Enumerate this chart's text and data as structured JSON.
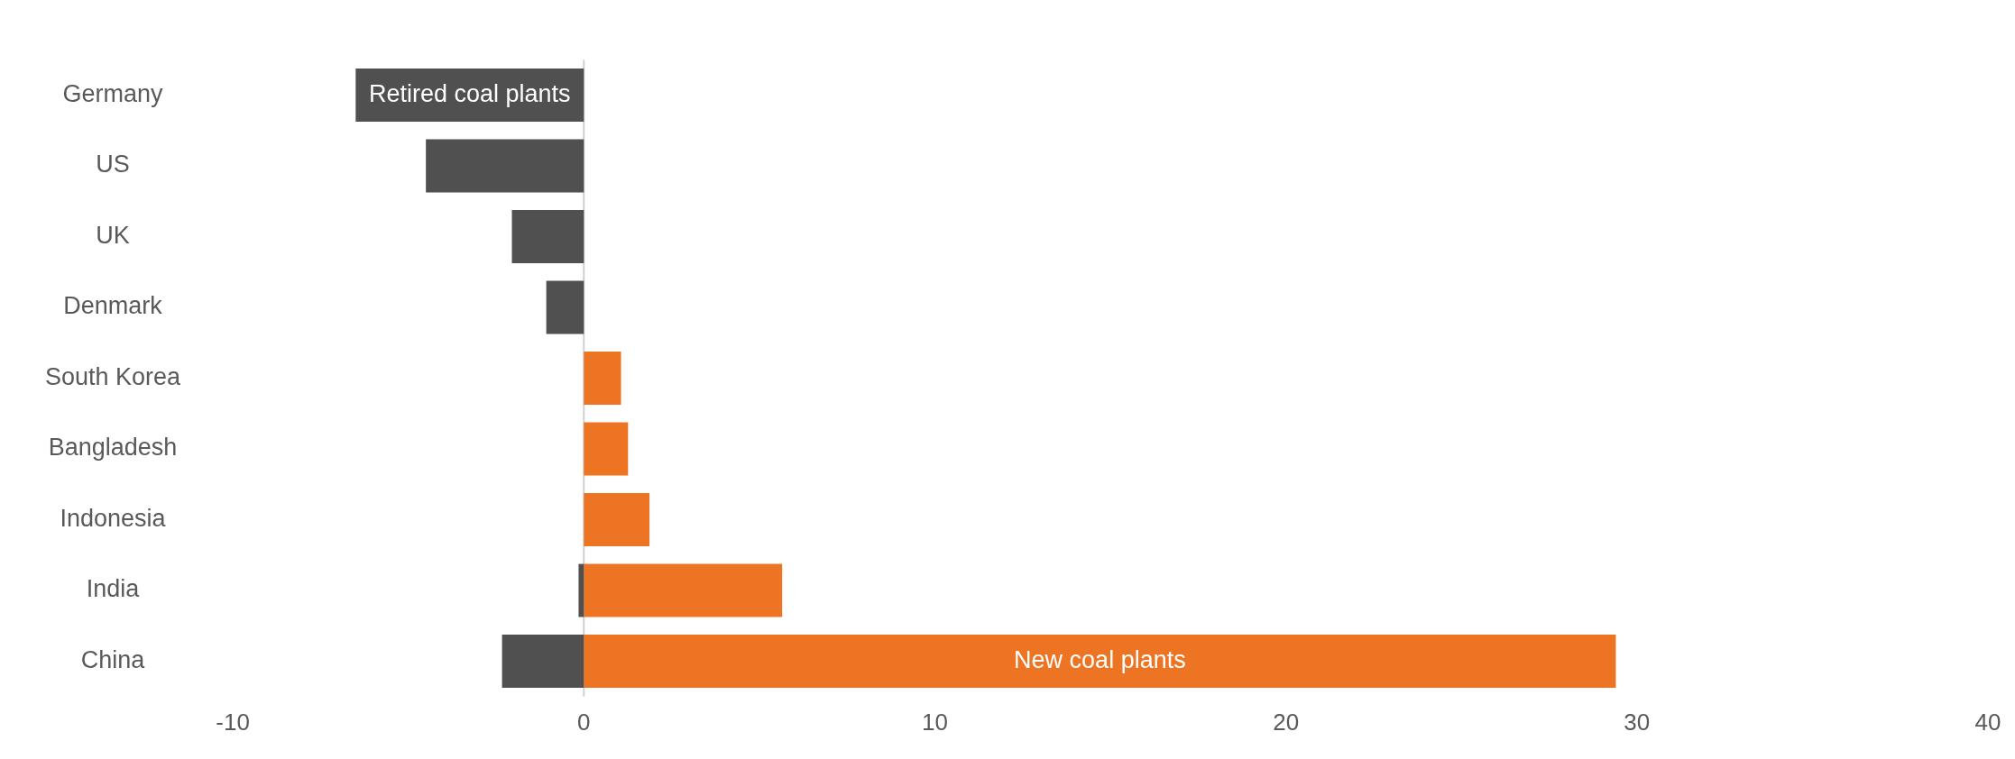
{
  "chart_data": {
    "type": "bar",
    "orientation": "horizontal",
    "stacked": true,
    "categories": [
      "Germany",
      "US",
      "UK",
      "Denmark",
      "South Korea",
      "Bangladesh",
      "Indonesia",
      "India",
      "China"
    ],
    "series": [
      {
        "name": "Retired coal plants",
        "color": "#505050",
        "values": [
          -6.5,
          -4.5,
          -2.05,
          -1.07,
          null,
          null,
          null,
          -0.15,
          -2.33
        ]
      },
      {
        "name": "New coal plants",
        "color": "#ed7423",
        "values": [
          null,
          null,
          null,
          null,
          1.06,
          1.26,
          1.87,
          5.65,
          29.4
        ]
      }
    ],
    "ref_lines": [
      {
        "axis": "x",
        "value": 0,
        "color": "#d0d0d0"
      }
    ],
    "xlim": [
      -10,
      40
    ],
    "xticks": [
      -10,
      0,
      10,
      20,
      30,
      40
    ],
    "grid": false,
    "legend": false
  }
}
